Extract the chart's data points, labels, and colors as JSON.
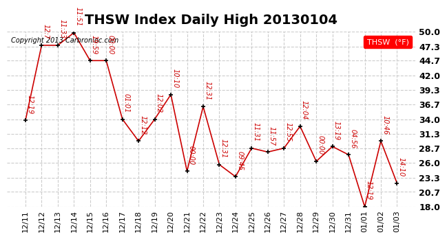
{
  "title": "THSW Index Daily High 20130104",
  "copyright": "Copyright 2013 Carbronioc.com",
  "legend_label": "THSW  (°F)",
  "background_color": "#ffffff",
  "plot_bg_color": "#ffffff",
  "line_color": "#cc0000",
  "marker_color": "#000000",
  "grid_color": "#cccccc",
  "ylabel_color": "#000000",
  "dates": [
    "12/11",
    "12/12",
    "12/13",
    "12/14",
    "12/15",
    "12/16",
    "12/17",
    "12/18",
    "12/19",
    "12/20",
    "12/21",
    "12/22",
    "12/23",
    "12/24",
    "12/25",
    "12/26",
    "12/27",
    "12/28",
    "12/29",
    "12/30",
    "12/31",
    "01/01",
    "01/02",
    "01/03"
  ],
  "values": [
    33.8,
    47.5,
    47.5,
    49.8,
    44.7,
    44.7,
    34.0,
    30.0,
    34.0,
    38.5,
    24.5,
    36.3,
    25.7,
    23.5,
    28.7,
    28.0,
    28.7,
    32.7,
    26.3,
    29.0,
    27.5,
    18.0,
    30.0,
    22.3
  ],
  "time_labels": [
    "12:19",
    "12:7",
    "11:33",
    "11:51",
    "19:59",
    "00:00",
    "01:01",
    "12:12",
    "12:02",
    "10:10",
    "00:00",
    "12:31",
    "12:31",
    "09:45",
    "11:31",
    "11:57",
    "12:55",
    "12:04",
    "00:00",
    "13:19",
    "04:56",
    "12:19",
    "10:46",
    "14:10"
  ],
  "ylim_min": 18.0,
  "ylim_max": 50.0,
  "yticks": [
    18.0,
    20.7,
    23.3,
    26.0,
    28.7,
    31.3,
    34.0,
    36.7,
    39.3,
    42.0,
    44.7,
    47.3,
    50.0
  ],
  "title_fontsize": 14,
  "axis_fontsize": 8,
  "label_fontsize": 7
}
